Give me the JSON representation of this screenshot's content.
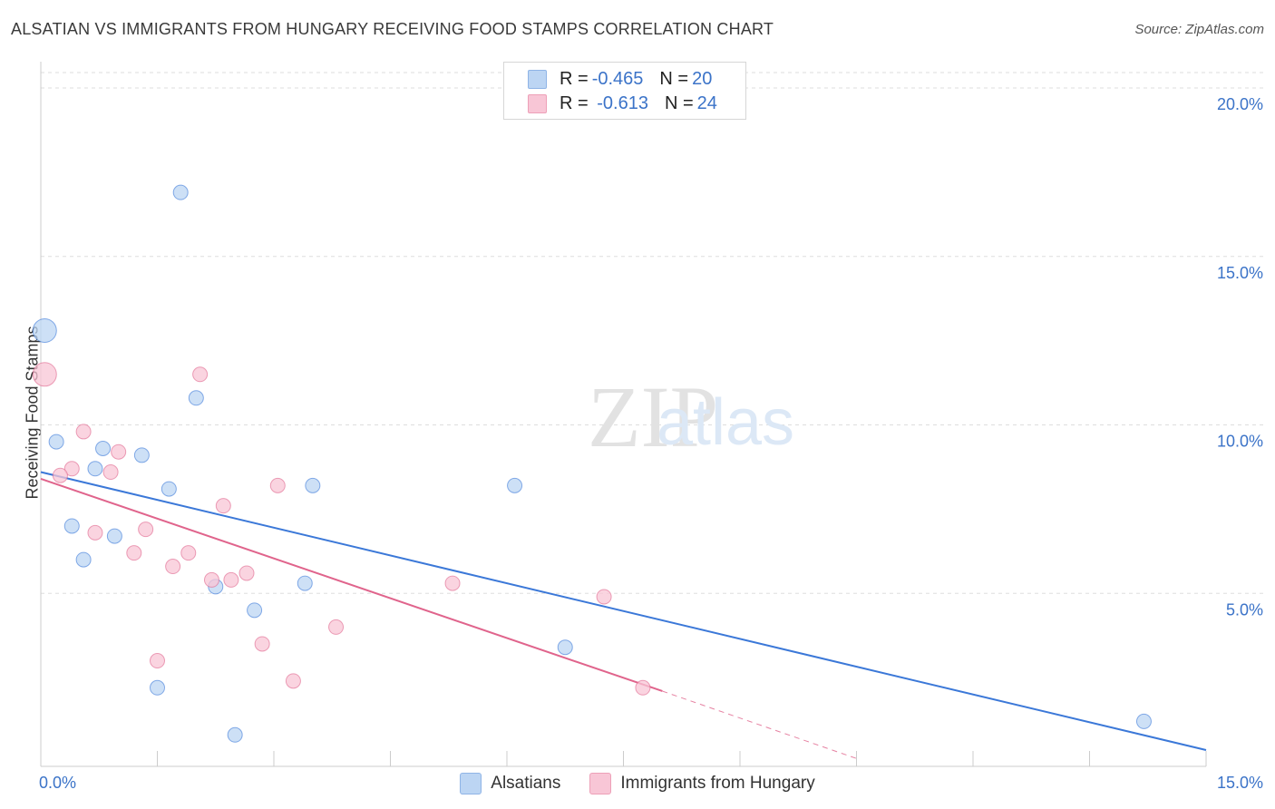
{
  "title": "ALSATIAN VS IMMIGRANTS FROM HUNGARY RECEIVING FOOD STAMPS CORRELATION CHART",
  "source": "Source: ZipAtlas.com",
  "watermark": {
    "zip": "ZIP",
    "atlas": "atlas"
  },
  "legend": {
    "rows": [
      {
        "r_label": "R = ",
        "r_value": "-0.465",
        "n_label": "N = ",
        "n_value": "20",
        "color": "#a9c8f0"
      },
      {
        "r_label": "R = ",
        "r_value": " -0.613",
        "n_label": "N = ",
        "n_value": "24",
        "color": "#f5b8cb"
      }
    ]
  },
  "chart_data": {
    "type": "scatter",
    "title": "ALSATIAN VS IMMIGRANTS FROM HUNGARY RECEIVING FOOD STAMPS CORRELATION CHART",
    "xlabel": "",
    "ylabel": "Receiving Food Stamps",
    "xlim": [
      0,
      15
    ],
    "ylim": [
      0,
      20
    ],
    "x_tick_labels": [
      "0.0%",
      "15.0%"
    ],
    "y_ticks": [
      5,
      10,
      15,
      20
    ],
    "y_tick_labels": [
      "5.0%",
      "10.0%",
      "15.0%",
      "20.0%"
    ],
    "grid": true,
    "series": [
      {
        "name": "Alsatians",
        "color": "#3b78d8",
        "fill": "#bcd5f3",
        "points": [
          {
            "x": 0.05,
            "y": 12.8,
            "big": true
          },
          {
            "x": 1.8,
            "y": 16.9
          },
          {
            "x": 2.0,
            "y": 10.8
          },
          {
            "x": 0.2,
            "y": 9.5
          },
          {
            "x": 0.8,
            "y": 9.3
          },
          {
            "x": 1.3,
            "y": 9.1
          },
          {
            "x": 0.7,
            "y": 8.7
          },
          {
            "x": 1.65,
            "y": 8.1
          },
          {
            "x": 3.5,
            "y": 8.2
          },
          {
            "x": 6.1,
            "y": 8.2
          },
          {
            "x": 0.4,
            "y": 7.0
          },
          {
            "x": 0.95,
            "y": 6.7
          },
          {
            "x": 0.55,
            "y": 6.0
          },
          {
            "x": 2.25,
            "y": 5.2
          },
          {
            "x": 3.4,
            "y": 5.3
          },
          {
            "x": 2.75,
            "y": 4.5
          },
          {
            "x": 6.75,
            "y": 3.4
          },
          {
            "x": 1.5,
            "y": 2.2
          },
          {
            "x": 2.5,
            "y": 0.8
          },
          {
            "x": 14.2,
            "y": 1.2
          }
        ],
        "trend": {
          "x0": 0,
          "y0": 8.6,
          "x1": 15,
          "y1": 0.35
        }
      },
      {
        "name": "Immigrants from Hungary",
        "color": "#e0648c",
        "fill": "#f8c6d6",
        "points": [
          {
            "x": 0.05,
            "y": 11.5,
            "big": true
          },
          {
            "x": 2.05,
            "y": 11.5
          },
          {
            "x": 0.55,
            "y": 9.8
          },
          {
            "x": 1.0,
            "y": 9.2
          },
          {
            "x": 0.4,
            "y": 8.7
          },
          {
            "x": 0.9,
            "y": 8.6
          },
          {
            "x": 0.25,
            "y": 8.5
          },
          {
            "x": 3.05,
            "y": 8.2
          },
          {
            "x": 2.35,
            "y": 7.6
          },
          {
            "x": 1.35,
            "y": 6.9
          },
          {
            "x": 0.7,
            "y": 6.8
          },
          {
            "x": 1.2,
            "y": 6.2
          },
          {
            "x": 1.9,
            "y": 6.2
          },
          {
            "x": 1.7,
            "y": 5.8
          },
          {
            "x": 2.65,
            "y": 5.6
          },
          {
            "x": 2.2,
            "y": 5.4
          },
          {
            "x": 2.45,
            "y": 5.4
          },
          {
            "x": 5.3,
            "y": 5.3
          },
          {
            "x": 7.25,
            "y": 4.9
          },
          {
            "x": 3.8,
            "y": 4.0
          },
          {
            "x": 2.85,
            "y": 3.5
          },
          {
            "x": 1.5,
            "y": 3.0
          },
          {
            "x": 3.25,
            "y": 2.4
          },
          {
            "x": 7.75,
            "y": 2.2
          }
        ],
        "trend": {
          "x0": 0,
          "y0": 8.4,
          "x1": 8.0,
          "y1": 2.1
        },
        "trend_extension": {
          "x0": 8.0,
          "y0": 2.1,
          "x1": 10.5,
          "y1": 0.1
        }
      }
    ]
  }
}
